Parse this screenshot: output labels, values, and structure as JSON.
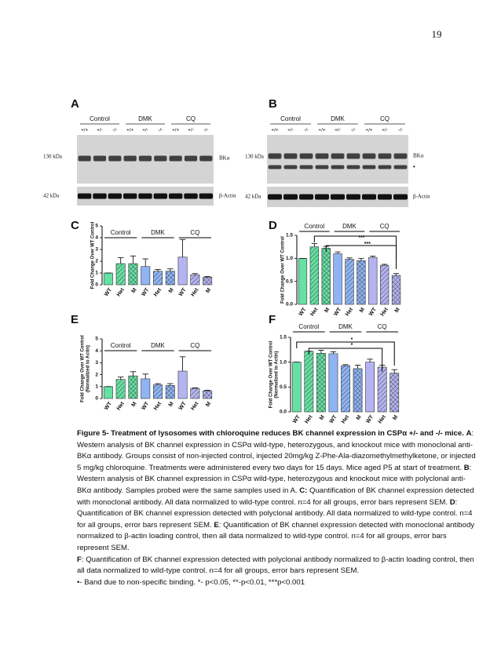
{
  "page_number": "19",
  "blots": [
    {
      "label": "A",
      "groups": [
        "Control",
        "DMK",
        "CQ"
      ],
      "genotypes": [
        "+/+",
        "+/-",
        "-/-",
        "+/+",
        "+/-",
        "-/-",
        "+/+",
        "+/-",
        "-/-"
      ],
      "markers": [
        "130 kDa",
        "42 kDa"
      ],
      "bands": [
        "BKα",
        "β-Actin"
      ]
    },
    {
      "label": "B",
      "groups": [
        "Control",
        "DMK",
        "CQ"
      ],
      "genotypes": [
        "+/+",
        "+/-",
        "-/-",
        "+/+",
        "+/-",
        "-/-",
        "+/+",
        "+/-",
        "-/-"
      ],
      "markers": [
        "130 kDa",
        "42 kDa"
      ],
      "bands": [
        "BKα",
        "•",
        "β-Actin"
      ]
    }
  ],
  "charts": [
    {
      "type": "bar",
      "label": "C",
      "ylabel": [
        "Fold Change Over WT Control"
      ],
      "groups": [
        "Control",
        "DMK",
        "CQ"
      ],
      "categories": [
        "WT",
        "Het",
        "M",
        "WT",
        "Het",
        "M",
        "WT",
        "Het",
        "M"
      ],
      "values": [
        1.0,
        1.8,
        1.8,
        1.55,
        1.15,
        1.15,
        2.35,
        0.85,
        0.65
      ],
      "errors": [
        0,
        0.5,
        0.65,
        0.65,
        0.15,
        0.2,
        1.5,
        0.1,
        0.05
      ],
      "colors": [
        "#66e0a3",
        "#66e0a3",
        "#66e0a3",
        "#8fb4f5",
        "#8fb4f5",
        "#8fb4f5",
        "#b4b4f2",
        "#b4b4f2",
        "#b4b4f2"
      ],
      "patterns": [
        "solid",
        "hatch",
        "cross",
        "solid",
        "hatch",
        "cross",
        "solid",
        "hatch",
        "cross"
      ],
      "ylim": [
        0,
        5
      ],
      "yticks": [
        0,
        1,
        2,
        3,
        4,
        5
      ],
      "significance": []
    },
    {
      "type": "bar",
      "label": "D",
      "ylabel": [
        "Fold Change Over WT Control"
      ],
      "groups": [
        "Control",
        "DMK",
        "CQ"
      ],
      "categories": [
        "WT",
        "Het",
        "M",
        "WT",
        "Het",
        "M",
        "WT",
        "Het",
        "M"
      ],
      "values": [
        1.0,
        1.25,
        1.22,
        1.1,
        0.98,
        0.95,
        1.02,
        0.85,
        0.63
      ],
      "errors": [
        0,
        0.07,
        0.04,
        0.04,
        0.03,
        0.05,
        0.03,
        0.02,
        0.04
      ],
      "colors": [
        "#66e0a3",
        "#66e0a3",
        "#66e0a3",
        "#8fb4f5",
        "#8fb4f5",
        "#8fb4f5",
        "#b4b4f2",
        "#b4b4f2",
        "#b4b4f2"
      ],
      "patterns": [
        "solid",
        "hatch",
        "cross",
        "solid",
        "hatch",
        "cross",
        "solid",
        "hatch",
        "cross"
      ],
      "ylim": [
        0,
        1.5
      ],
      "yticks": [
        {
          "value": 0,
          "label": "0.0"
        },
        {
          "value": 0.5,
          "label": "0.5"
        },
        {
          "value": 1,
          "label": "1.0"
        },
        {
          "value": 1.5,
          "label": "1.5"
        }
      ],
      "significance": [
        "***",
        "***"
      ]
    },
    {
      "type": "bar",
      "label": "E",
      "ylabel": [
        "Fold Change Over WT Control",
        "(Normalized to Actin)"
      ],
      "groups": [
        "Control",
        "DMK",
        "CQ"
      ],
      "categories": [
        "WT",
        "Het",
        "M",
        "WT",
        "Het",
        "M",
        "WT",
        "Het",
        "M"
      ],
      "values": [
        1.0,
        1.6,
        1.9,
        1.65,
        1.15,
        1.1,
        2.3,
        0.85,
        0.65
      ],
      "errors": [
        0,
        0.2,
        0.35,
        0.4,
        0.1,
        0.15,
        1.2,
        0.05,
        0.05
      ],
      "colors": [
        "#66e0a3",
        "#66e0a3",
        "#66e0a3",
        "#8fb4f5",
        "#8fb4f5",
        "#8fb4f5",
        "#b4b4f2",
        "#b4b4f2",
        "#b4b4f2"
      ],
      "patterns": [
        "solid",
        "hatch",
        "cross",
        "solid",
        "hatch",
        "cross",
        "solid",
        "hatch",
        "cross"
      ],
      "ylim": [
        0,
        5
      ],
      "yticks": [
        0,
        1,
        2,
        3,
        4,
        5
      ],
      "significance": []
    },
    {
      "type": "bar",
      "label": "F",
      "ylabel": [
        "Fold Change Over WT Control",
        "(Normalized to Actin)"
      ],
      "groups": [
        "Control",
        "DMK",
        "CQ"
      ],
      "categories": [
        "WT",
        "Het",
        "M",
        "WT",
        "Het",
        "M",
        "WT",
        "Het",
        "M"
      ],
      "values": [
        1.0,
        1.22,
        1.18,
        1.17,
        0.93,
        0.87,
        1.0,
        0.9,
        0.78
      ],
      "errors": [
        0,
        0,
        0.06,
        0.04,
        0.02,
        0.07,
        0.06,
        0.04,
        0.07
      ],
      "colors": [
        "#66e0a3",
        "#66e0a3",
        "#66e0a3",
        "#8fb4f5",
        "#8fb4f5",
        "#8fb4f5",
        "#b4b4f2",
        "#b4b4f2",
        "#b4b4f2"
      ],
      "patterns": [
        "solid",
        "hatch",
        "cross",
        "solid",
        "hatch",
        "cross",
        "solid",
        "hatch",
        "cross"
      ],
      "ylim": [
        0,
        1.5
      ],
      "yticks": [
        {
          "value": 0,
          "label": "0.0"
        },
        {
          "value": 0.5,
          "label": "0.5"
        },
        {
          "value": 1,
          "label": "1.0"
        },
        {
          "value": 1.5,
          "label": "1.5"
        }
      ],
      "significance": [
        "*",
        "*"
      ]
    }
  ],
  "caption": [
    [
      {
        "text": "Figure 5- Treatment of lysosomes with chloroquine reduces BK channel expression in CSPα +/- and -/- mice.",
        "bold": true
      },
      {
        "text": " ",
        "bold": false
      },
      {
        "text": "A",
        "bold": true
      },
      {
        "text": ": Western analysis of BK channel expression in CSPα wild-type, heterozygous, and knockout mice with monoclonal anti-BKα antibody. Groups consist of non-injected control, injected 20mg/kg Z-Phe-Ala-diazomethylmethylketone, or injected 5 mg/kg chloroquine. Treatments were administered every two days for 15 days. Mice aged P5 at start of treatment. ",
        "bold": false
      },
      {
        "text": "B",
        "bold": true
      },
      {
        "text": ": Western analysis of BK channel expression in CSPα wild-type, heterozygous and knockout mice with polyclonal anti-BKα antibody. Samples probed were the same samples used in A. ",
        "bold": false
      },
      {
        "text": "C:",
        "bold": true
      },
      {
        "text": " Quantification of BK channel expression detected with monoclonal antibody. All data normalized to wild-type control. n=4 for all groups, error bars represent SEM. ",
        "bold": false
      },
      {
        "text": "D",
        "bold": true
      },
      {
        "text": ": Quantification of BK channel expression detected with polyclonal antibody. All data normalized to wild-type control. n=4 for all groups, error bars represent SEM. ",
        "bold": false
      },
      {
        "text": "E",
        "bold": true
      },
      {
        "text": ": Quantification of BK channel expression detected with monoclonal antibody normalized to β-actin loading control, then all data normalized to wild-type control. n=4 for all groups, error bars represent SEM.",
        "bold": false
      }
    ],
    [
      {
        "text": "F",
        "bold": true
      },
      {
        "text": ": Quantification of BK channel expression detected with polyclonal antibody normalized to β-actin loading control, then all data normalized to wild-type control. n=4 for all groups, error bars represent SEM.",
        "bold": false
      }
    ],
    [
      {
        "text": "•- Band due to non-specific binding. *- p<0.05, **-p<0.01, ***p<0.001",
        "bold": false
      }
    ]
  ]
}
